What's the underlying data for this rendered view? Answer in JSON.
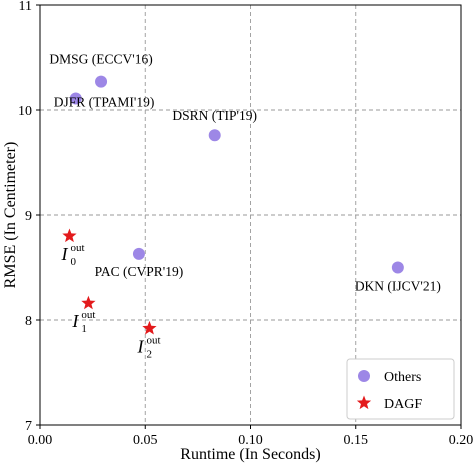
{
  "chart_data": {
    "type": "scatter",
    "xlabel": "Runtime (In Seconds)",
    "ylabel": "RMSE (In Centimeter)",
    "xlim": [
      0.0,
      0.2
    ],
    "ylim": [
      7,
      11
    ],
    "x_ticks": [
      "0.00",
      "0.05",
      "0.10",
      "0.15",
      "0.20"
    ],
    "y_ticks": [
      "7",
      "8",
      "9",
      "10",
      "11"
    ],
    "grid": true,
    "legend_position": "bottom-right",
    "series": [
      {
        "name": "Others",
        "marker": "circle",
        "color": "#9d87e6",
        "points": [
          {
            "label": "DMSG (ECCV'16)",
            "x": 0.029,
            "y": 10.27
          },
          {
            "label": "DJFR (TPAMI'19)",
            "x": 0.017,
            "y": 10.11
          },
          {
            "label": "DSRN (TIP'19)",
            "x": 0.083,
            "y": 9.76
          },
          {
            "label": "PAC (CVPR'19)",
            "x": 0.047,
            "y": 8.63
          },
          {
            "label": "DKN (IJCV'21)",
            "x": 0.17,
            "y": 8.5
          }
        ]
      },
      {
        "name": "DAGF",
        "marker": "star",
        "color": "#e31a1c",
        "points": [
          {
            "label": "I",
            "sub": "0",
            "sup": "out",
            "x": 0.014,
            "y": 8.8
          },
          {
            "label": "I",
            "sub": "1",
            "sup": "out",
            "x": 0.023,
            "y": 8.16
          },
          {
            "label": "I",
            "sub": "2",
            "sup": "out",
            "x": 0.052,
            "y": 7.92
          }
        ]
      }
    ]
  }
}
